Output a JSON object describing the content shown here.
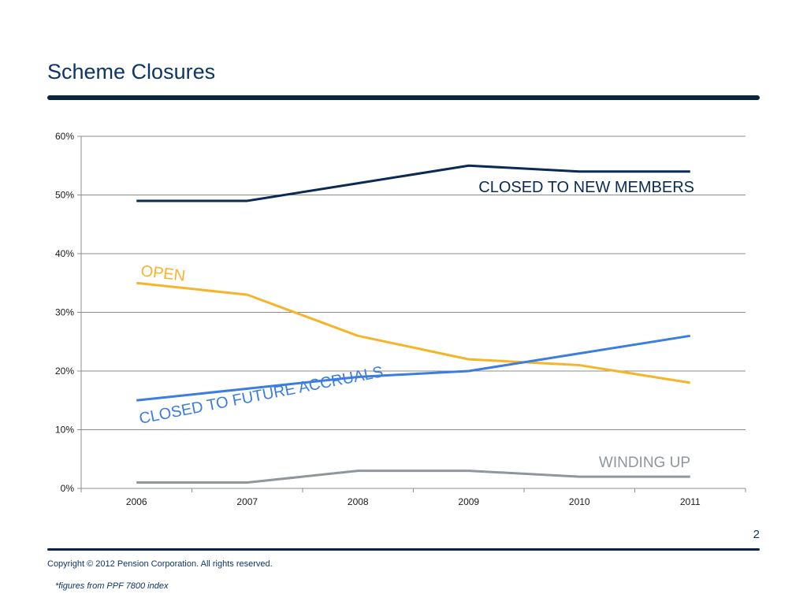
{
  "slide": {
    "title": "Scheme Closures",
    "page_number": "2",
    "copyright": "Copyright © 2012 Pension Corporation. All rights reserved.",
    "footnote": "*figures from PPF 7800 index"
  },
  "colors": {
    "title": "#0d3567",
    "rule": "#0a2444",
    "grid": "#8c8c8c"
  },
  "chart_data": {
    "type": "line",
    "title": "",
    "xlabel": "",
    "ylabel": "",
    "x": [
      "2006",
      "2007",
      "2008",
      "2009",
      "2010",
      "2011"
    ],
    "ylim": [
      0,
      60
    ],
    "yticks": [
      0,
      10,
      20,
      30,
      40,
      50,
      60
    ],
    "ytick_labels": [
      "0%",
      "10%",
      "20%",
      "30%",
      "40%",
      "50%",
      "60%"
    ],
    "grid": true,
    "legend": "none (series labelled inline)",
    "series": [
      {
        "name": "CLOSED TO NEW MEMBERS",
        "color": "#0a2a55",
        "values": [
          49,
          49,
          52,
          55,
          54,
          54
        ]
      },
      {
        "name": "OPEN",
        "color": "#f5b52a",
        "values": [
          35,
          33,
          26,
          22,
          21,
          18
        ]
      },
      {
        "name": "CLOSED TO FUTURE ACCRUALS",
        "color": "#3b7de0",
        "values": [
          15,
          17,
          19,
          20,
          23,
          26
        ]
      },
      {
        "name": "WINDING UP",
        "color": "#8f969e",
        "values": [
          1,
          1,
          3,
          3,
          2,
          2
        ]
      }
    ]
  }
}
